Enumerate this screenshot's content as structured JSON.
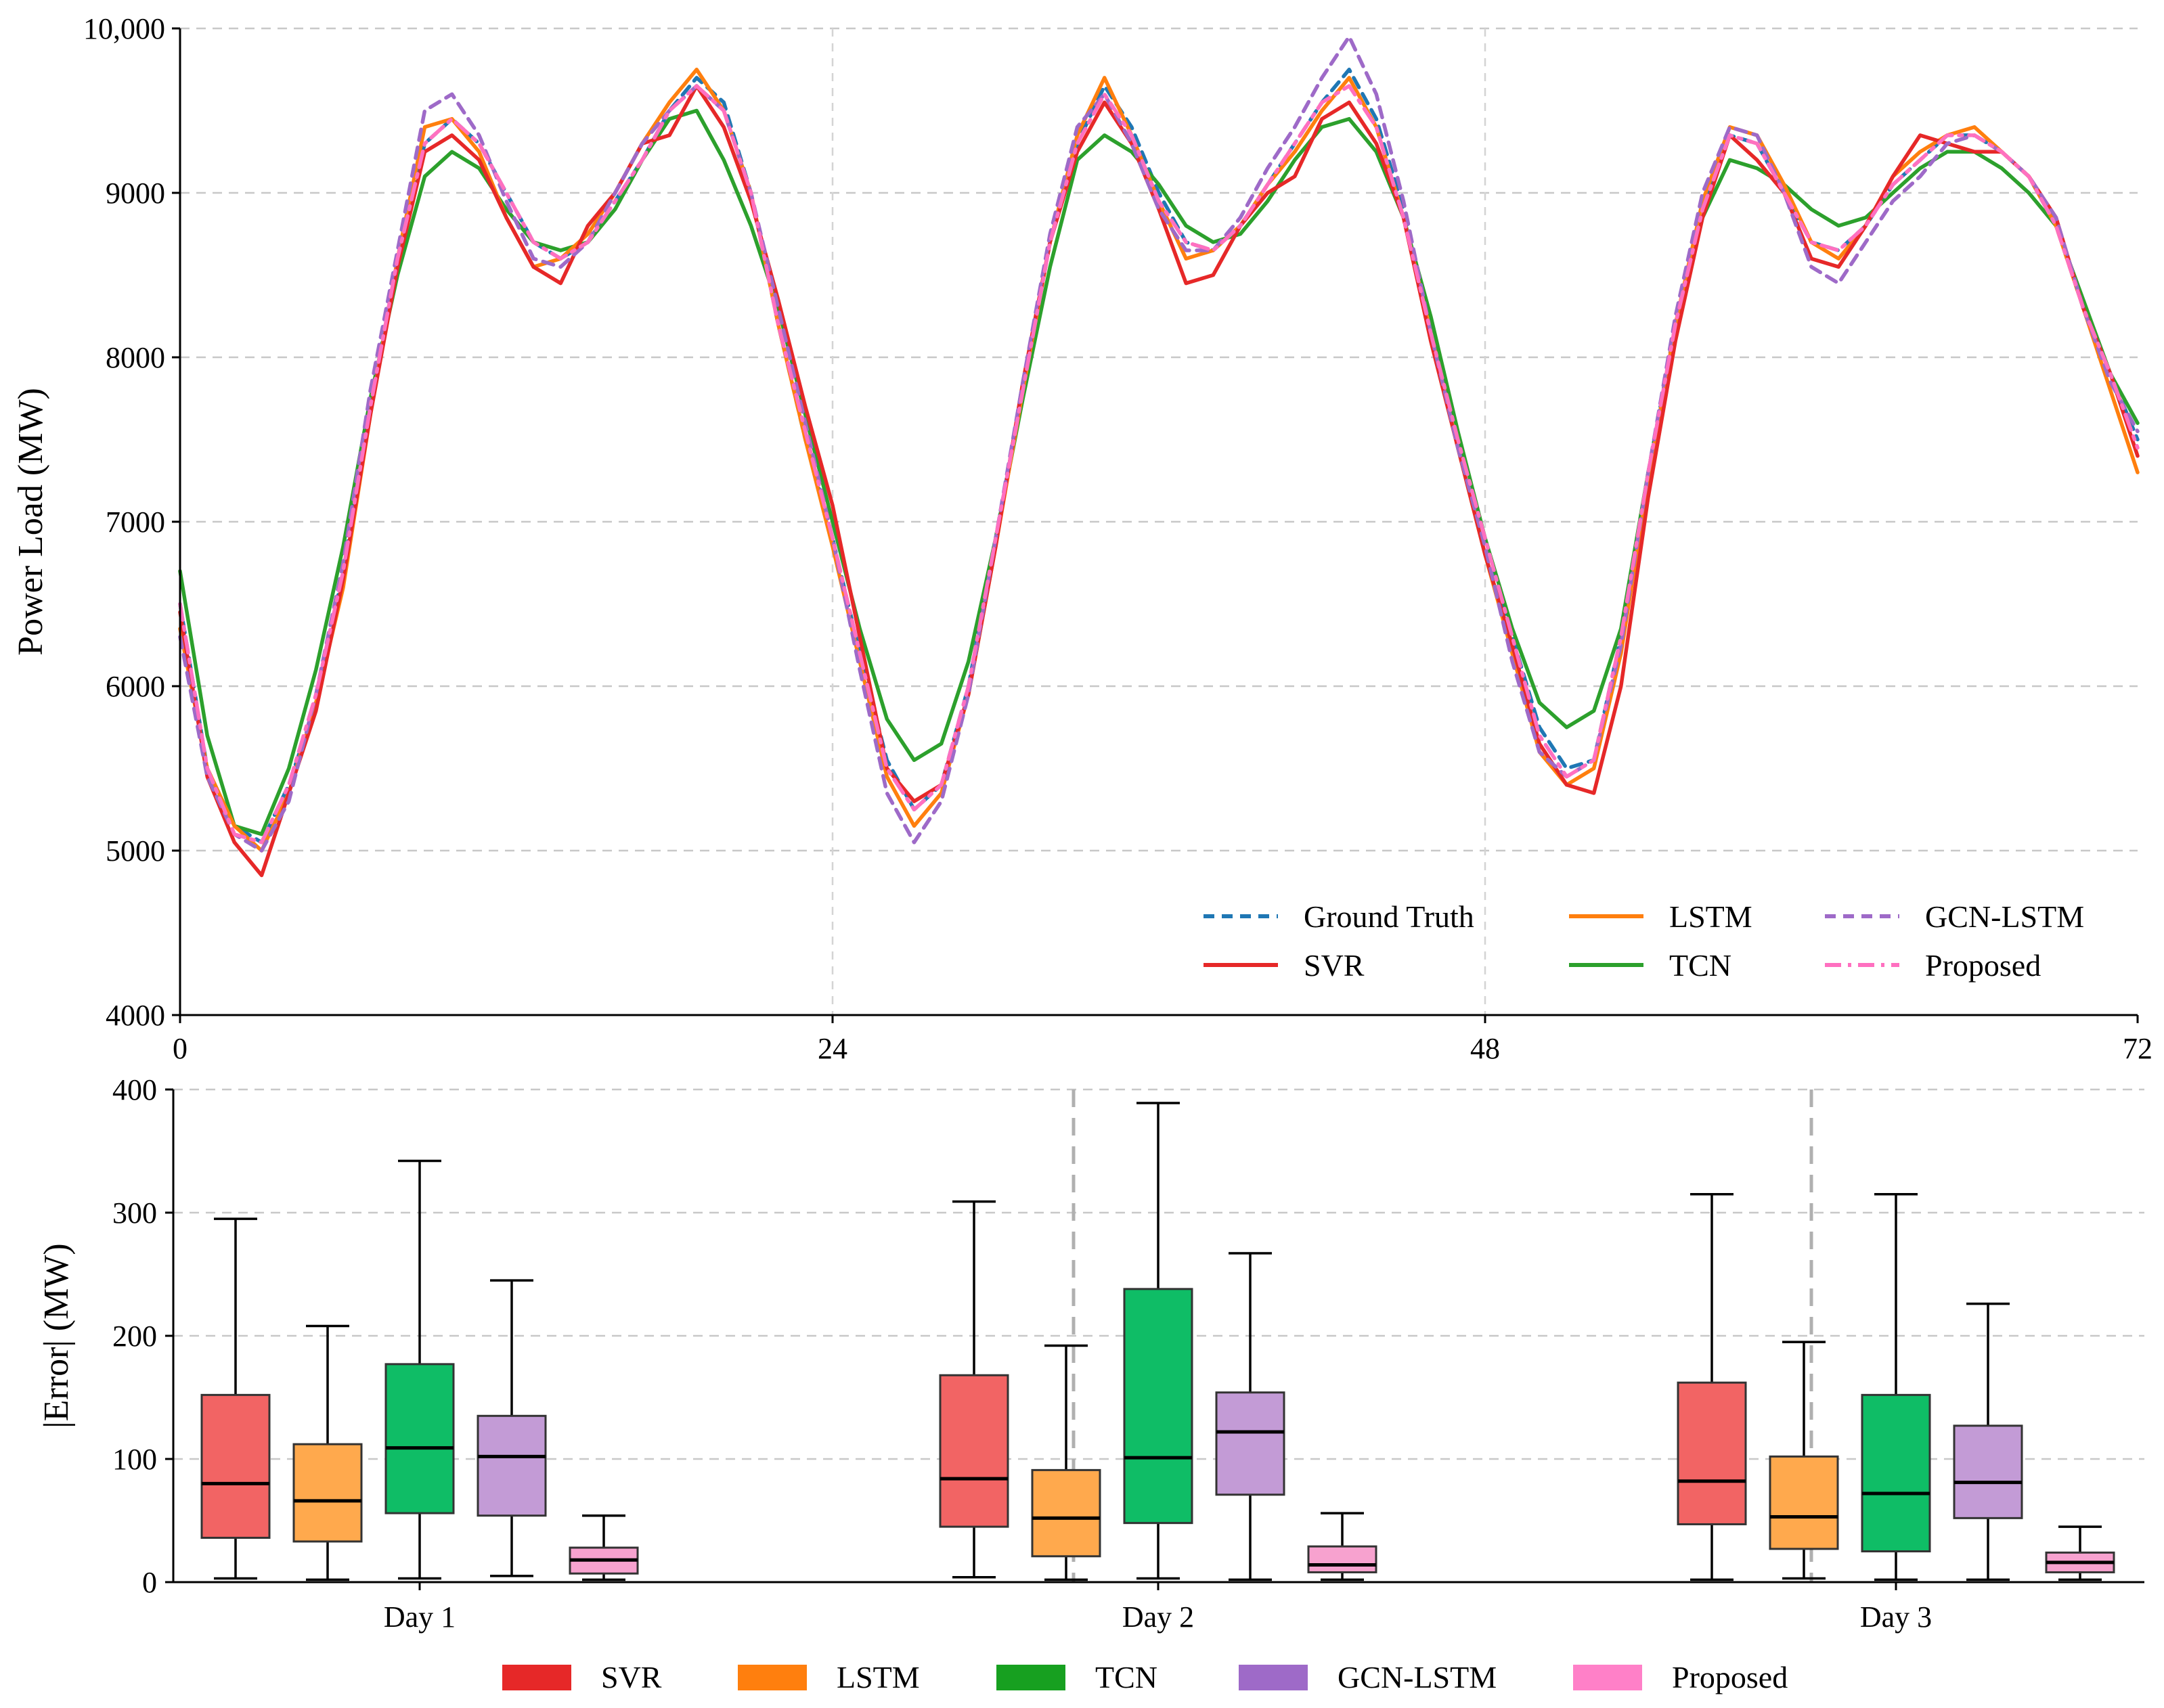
{
  "chart_data": [
    {
      "type": "line",
      "ylabel": "Power Load (MW)",
      "xlim": [
        0,
        72
      ],
      "ylim": [
        4000,
        10000
      ],
      "x_ticks": [
        "0",
        "24",
        "48",
        "72"
      ],
      "y_ticks": [
        "4000",
        "5000",
        "6000",
        "7000",
        "8000",
        "9000",
        "10,000"
      ],
      "grid": true,
      "legend_position": "bottom-right",
      "x": [
        0,
        1,
        2,
        3,
        4,
        5,
        6,
        7,
        8,
        9,
        10,
        11,
        12,
        13,
        14,
        15,
        16,
        17,
        18,
        19,
        20,
        21,
        22,
        23,
        24,
        25,
        26,
        27,
        28,
        29,
        30,
        31,
        32,
        33,
        34,
        35,
        36,
        37,
        38,
        39,
        40,
        41,
        42,
        43,
        44,
        45,
        46,
        47,
        48,
        49,
        50,
        51,
        52,
        53,
        54,
        55,
        56,
        57,
        58,
        59,
        60,
        61,
        62,
        63,
        64,
        65,
        66,
        67,
        68,
        69,
        70,
        71,
        72
      ],
      "series": [
        {
          "name": "Ground Truth",
          "color": "#1f77b4",
          "style": "dashed",
          "values": [
            6500,
            5500,
            5150,
            5050,
            5400,
            5900,
            6700,
            7700,
            8600,
            9300,
            9450,
            9300,
            9000,
            8700,
            8600,
            8700,
            8950,
            9200,
            9500,
            9700,
            9550,
            9000,
            8200,
            7500,
            6900,
            6200,
            5550,
            5250,
            5400,
            6000,
            6900,
            7800,
            8700,
            9300,
            9650,
            9400,
            9000,
            8700,
            8650,
            8800,
            9050,
            9300,
            9550,
            9750,
            9450,
            8900,
            8200,
            7500,
            6900,
            6300,
            5750,
            5500,
            5550,
            6300,
            7300,
            8200,
            8900,
            9350,
            9300,
            9000,
            8700,
            8650,
            8800,
            9050,
            9200,
            9350,
            9350,
            9250,
            9100,
            8800,
            8300,
            7900,
            7500
          ]
        },
        {
          "name": "SVR",
          "color": "#e62828",
          "style": "solid",
          "values": [
            6450,
            5450,
            5050,
            4850,
            5350,
            5850,
            6650,
            7650,
            8550,
            9250,
            9350,
            9200,
            8850,
            8550,
            8450,
            8800,
            9000,
            9300,
            9350,
            9650,
            9400,
            8950,
            8350,
            7700,
            7100,
            6300,
            5500,
            5300,
            5400,
            5950,
            6850,
            7850,
            8700,
            9250,
            9550,
            9300,
            8900,
            8450,
            8500,
            8800,
            9000,
            9100,
            9450,
            9550,
            9300,
            8850,
            8100,
            7450,
            6800,
            6250,
            5650,
            5400,
            5350,
            6000,
            7150,
            8100,
            8850,
            9350,
            9200,
            9000,
            8600,
            8550,
            8800,
            9100,
            9350,
            9300,
            9250,
            9250,
            9100,
            8850,
            8300,
            7900,
            7400
          ]
        },
        {
          "name": "LSTM",
          "color": "#ff7f0e",
          "style": "solid",
          "values": [
            6350,
            5500,
            5150,
            5000,
            5350,
            5900,
            6600,
            7650,
            8600,
            9400,
            9450,
            9250,
            8850,
            8550,
            8600,
            8750,
            9000,
            9300,
            9550,
            9750,
            9500,
            9000,
            8200,
            7500,
            6850,
            6150,
            5450,
            5150,
            5350,
            5950,
            6850,
            7800,
            8700,
            9350,
            9700,
            9350,
            8950,
            8600,
            8650,
            8800,
            9050,
            9250,
            9500,
            9700,
            9400,
            8850,
            8150,
            7450,
            6800,
            6200,
            5600,
            5400,
            5500,
            6200,
            7250,
            8200,
            8950,
            9400,
            9350,
            9050,
            8700,
            8600,
            8800,
            9100,
            9250,
            9350,
            9400,
            9250,
            9100,
            8800,
            8300,
            7800,
            7300
          ]
        },
        {
          "name": "TCN",
          "color": "#2ca02c",
          "style": "solid",
          "values": [
            6700,
            5700,
            5150,
            5100,
            5500,
            6100,
            6850,
            7750,
            8500,
            9100,
            9250,
            9150,
            8900,
            8700,
            8650,
            8700,
            8900,
            9200,
            9450,
            9500,
            9200,
            8800,
            8300,
            7650,
            7000,
            6350,
            5800,
            5550,
            5650,
            6150,
            6900,
            7750,
            8550,
            9200,
            9350,
            9250,
            9050,
            8800,
            8700,
            8750,
            8950,
            9200,
            9400,
            9450,
            9250,
            8850,
            8250,
            7550,
            6900,
            6350,
            5900,
            5750,
            5850,
            6350,
            7300,
            8150,
            8850,
            9200,
            9150,
            9050,
            8900,
            8800,
            8850,
            9000,
            9150,
            9250,
            9250,
            9150,
            9000,
            8800,
            8350,
            7900,
            7600
          ]
        },
        {
          "name": "GCN-LSTM",
          "color": "#9e6ac8",
          "style": "dashed",
          "values": [
            6300,
            5450,
            5100,
            5000,
            5300,
            5950,
            6750,
            7800,
            8650,
            9500,
            9600,
            9350,
            8950,
            8600,
            8550,
            8700,
            9000,
            9300,
            9500,
            9650,
            9500,
            9000,
            8300,
            7600,
            6900,
            6100,
            5350,
            5050,
            5300,
            5950,
            6900,
            7850,
            8750,
            9400,
            9600,
            9300,
            8900,
            8650,
            8650,
            8850,
            9150,
            9400,
            9700,
            9950,
            9600,
            8950,
            8150,
            7450,
            6850,
            6150,
            5600,
            5450,
            5550,
            6250,
            7300,
            8250,
            9000,
            9400,
            9350,
            9000,
            8550,
            8450,
            8700,
            8950,
            9100,
            9300,
            9350,
            9250,
            9100,
            8850,
            8300,
            7850,
            7550
          ]
        },
        {
          "name": "Proposed",
          "color": "#ff70c0",
          "style": "dashdot",
          "values": [
            6500,
            5500,
            5100,
            5050,
            5400,
            5950,
            6700,
            7700,
            8600,
            9300,
            9450,
            9300,
            9000,
            8700,
            8600,
            8700,
            8950,
            9200,
            9500,
            9650,
            9500,
            9000,
            8200,
            7550,
            6900,
            6200,
            5500,
            5250,
            5400,
            6000,
            6900,
            7800,
            8700,
            9300,
            9600,
            9350,
            8950,
            8700,
            8650,
            8800,
            9050,
            9300,
            9550,
            9650,
            9400,
            8850,
            8150,
            7500,
            6900,
            6300,
            5700,
            5450,
            5550,
            6300,
            7300,
            8200,
            8900,
            9350,
            9300,
            9000,
            8700,
            8650,
            8800,
            9050,
            9200,
            9350,
            9350,
            9250,
            9100,
            8800,
            8300,
            7900,
            7450
          ]
        }
      ]
    },
    {
      "type": "box",
      "ylabel": "|Error| (MW)",
      "ylim": [
        0,
        400
      ],
      "y_ticks": [
        "0",
        "100",
        "200",
        "300",
        "400"
      ],
      "categories": [
        "Day 1",
        "Day 2",
        "Day 3"
      ],
      "grid": true,
      "legend_position": "bottom-center",
      "series": [
        {
          "name": "SVR",
          "color": "#f26464",
          "legend_color": "#e62828",
          "boxes": [
            {
              "min": 3,
              "q1": 36,
              "median": 80,
              "q3": 152,
              "max": 295
            },
            {
              "min": 4,
              "q1": 45,
              "median": 84,
              "q3": 168,
              "max": 309
            },
            {
              "min": 2,
              "q1": 47,
              "median": 82,
              "q3": 162,
              "max": 315
            }
          ]
        },
        {
          "name": "LSTM",
          "color": "#ffa94d",
          "legend_color": "#ff7f0e",
          "boxes": [
            {
              "min": 2,
              "q1": 33,
              "median": 66,
              "q3": 112,
              "max": 208
            },
            {
              "min": 2,
              "q1": 21,
              "median": 52,
              "q3": 91,
              "max": 192
            },
            {
              "min": 3,
              "q1": 27,
              "median": 53,
              "q3": 102,
              "max": 195
            }
          ]
        },
        {
          "name": "TCN",
          "color": "#0fbd66",
          "legend_color": "#17a020",
          "boxes": [
            {
              "min": 3,
              "q1": 56,
              "median": 109,
              "q3": 177,
              "max": 342
            },
            {
              "min": 3,
              "q1": 48,
              "median": 101,
              "q3": 238,
              "max": 389
            },
            {
              "min": 2,
              "q1": 25,
              "median": 72,
              "q3": 152,
              "max": 315
            }
          ]
        },
        {
          "name": "GCN-LSTM",
          "color": "#c39bd6",
          "legend_color": "#9e6ac8",
          "boxes": [
            {
              "min": 5,
              "q1": 54,
              "median": 102,
              "q3": 135,
              "max": 245
            },
            {
              "min": 2,
              "q1": 71,
              "median": 122,
              "q3": 154,
              "max": 267
            },
            {
              "min": 2,
              "q1": 52,
              "median": 81,
              "q3": 127,
              "max": 226
            }
          ]
        },
        {
          "name": "Proposed",
          "color": "#f7a2cf",
          "legend_color": "#ff80c8",
          "boxes": [
            {
              "min": 2,
              "q1": 7,
              "median": 18,
              "q3": 28,
              "max": 54
            },
            {
              "min": 2,
              "q1": 8,
              "median": 14,
              "q3": 29,
              "max": 56
            },
            {
              "min": 2,
              "q1": 8,
              "median": 16,
              "q3": 24,
              "max": 45
            }
          ]
        }
      ]
    }
  ]
}
